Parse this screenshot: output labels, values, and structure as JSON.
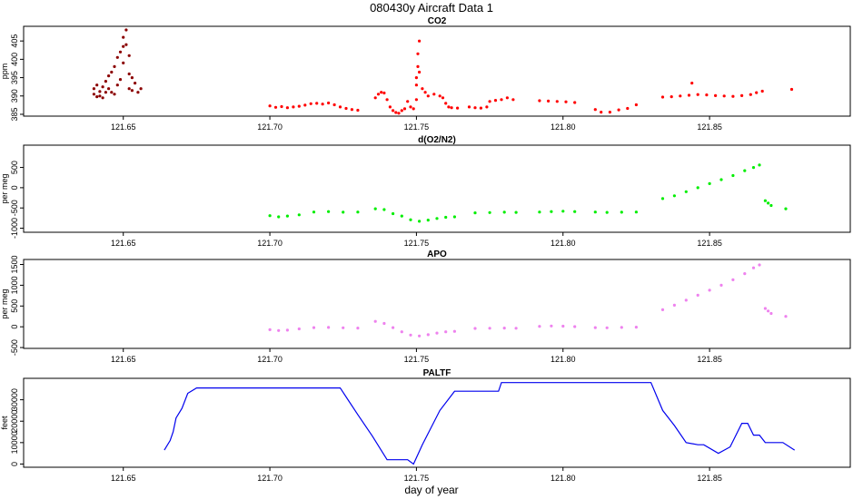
{
  "figure": {
    "title": "080430y   Aircraft Data 1",
    "xlabel": "day of year"
  },
  "chart_data": [
    {
      "type": "scatter",
      "title": "CO2",
      "ylabel": "ppm",
      "xlim": [
        121.616,
        121.898
      ],
      "ylim": [
        384.5,
        409
      ],
      "xticks": [
        121.65,
        121.7,
        121.75,
        121.8,
        121.85
      ],
      "xtick_labels": [
        "121.65",
        "121.70",
        "121.75",
        "121.80",
        "121.85"
      ],
      "yticks": [
        385,
        390,
        395,
        400,
        405
      ],
      "ytick_labels": [
        "385",
        "390",
        "395",
        "400",
        "405"
      ],
      "series": [
        {
          "color": "#8b0000",
          "points": [
            [
              121.64,
              390.5
            ],
            [
              121.64,
              392.0
            ],
            [
              121.641,
              389.8
            ],
            [
              121.641,
              393.0
            ],
            [
              121.642,
              391.2
            ],
            [
              121.642,
              390.0
            ],
            [
              121.643,
              392.5
            ],
            [
              121.643,
              389.5
            ],
            [
              121.644,
              394.0
            ],
            [
              121.644,
              391.0
            ],
            [
              121.645,
              395.5
            ],
            [
              121.645,
              392.0
            ],
            [
              121.646,
              391.0
            ],
            [
              121.646,
              396.5
            ],
            [
              121.647,
              390.5
            ],
            [
              121.647,
              398.0
            ],
            [
              121.648,
              393.0
            ],
            [
              121.648,
              400.5
            ],
            [
              121.649,
              394.5
            ],
            [
              121.649,
              402.0
            ],
            [
              121.65,
              399.0
            ],
            [
              121.65,
              403.5
            ],
            [
              121.65,
              406.0
            ],
            [
              121.651,
              408.0
            ],
            [
              121.651,
              404.0
            ],
            [
              121.652,
              396.0
            ],
            [
              121.652,
              401.0
            ],
            [
              121.652,
              392.0
            ],
            [
              121.653,
              395.0
            ],
            [
              121.653,
              391.5
            ],
            [
              121.654,
              393.5
            ],
            [
              121.655,
              391.0
            ],
            [
              121.656,
              392.0
            ]
          ]
        },
        {
          "color": "#ff0000",
          "points": [
            [
              121.7,
              387.3
            ],
            [
              121.702,
              386.9
            ],
            [
              121.704,
              387.1
            ],
            [
              121.706,
              386.8
            ],
            [
              121.708,
              387.0
            ],
            [
              121.71,
              387.2
            ],
            [
              121.712,
              387.5
            ],
            [
              121.714,
              387.9
            ],
            [
              121.716,
              388.0
            ],
            [
              121.718,
              387.8
            ],
            [
              121.72,
              388.1
            ],
            [
              121.722,
              387.6
            ],
            [
              121.724,
              387.0
            ],
            [
              121.726,
              386.6
            ],
            [
              121.728,
              386.3
            ],
            [
              121.73,
              386.1
            ],
            [
              121.736,
              389.5
            ],
            [
              121.737,
              390.5
            ],
            [
              121.738,
              391.0
            ],
            [
              121.739,
              390.8
            ],
            [
              121.74,
              389.0
            ],
            [
              121.741,
              387.0
            ],
            [
              121.742,
              386.0
            ],
            [
              121.743,
              385.5
            ],
            [
              121.744,
              385.3
            ],
            [
              121.745,
              386.0
            ],
            [
              121.746,
              386.5
            ],
            [
              121.747,
              388.5
            ],
            [
              121.748,
              387.0
            ],
            [
              121.749,
              386.5
            ],
            [
              121.75,
              389.0
            ],
            [
              121.75,
              393.0
            ],
            [
              121.75,
              395.0
            ],
            [
              121.7505,
              398.0
            ],
            [
              121.7505,
              401.5
            ],
            [
              121.751,
              405.0
            ],
            [
              121.751,
              396.5
            ],
            [
              121.752,
              392.0
            ],
            [
              121.753,
              391.0
            ],
            [
              121.754,
              390.0
            ],
            [
              121.756,
              390.5
            ],
            [
              121.758,
              390.0
            ],
            [
              121.759,
              389.5
            ],
            [
              121.76,
              388.0
            ],
            [
              121.761,
              387.0
            ],
            [
              121.762,
              386.8
            ],
            [
              121.764,
              386.7
            ],
            [
              121.768,
              387.0
            ],
            [
              121.77,
              386.8
            ],
            [
              121.772,
              386.7
            ],
            [
              121.774,
              387.0
            ],
            [
              121.775,
              388.5
            ],
            [
              121.777,
              388.8
            ],
            [
              121.779,
              389.0
            ],
            [
              121.781,
              389.5
            ],
            [
              121.783,
              389.0
            ],
            [
              121.792,
              388.7
            ],
            [
              121.795,
              388.6
            ],
            [
              121.798,
              388.5
            ],
            [
              121.801,
              388.4
            ],
            [
              121.804,
              388.2
            ],
            [
              121.811,
              386.3
            ],
            [
              121.813,
              385.6
            ],
            [
              121.816,
              385.6
            ],
            [
              121.819,
              386.2
            ],
            [
              121.822,
              386.6
            ],
            [
              121.825,
              387.6
            ],
            [
              121.834,
              389.7
            ],
            [
              121.837,
              389.8
            ],
            [
              121.84,
              390.0
            ],
            [
              121.843,
              390.2
            ],
            [
              121.846,
              390.4
            ],
            [
              121.849,
              390.3
            ],
            [
              121.852,
              390.1
            ],
            [
              121.855,
              390.0
            ],
            [
              121.858,
              389.9
            ],
            [
              121.861,
              390.1
            ],
            [
              121.864,
              390.4
            ],
            [
              121.866,
              390.9
            ],
            [
              121.868,
              391.3
            ],
            [
              121.844,
              393.5
            ],
            [
              121.878,
              391.8
            ]
          ]
        }
      ]
    },
    {
      "type": "scatter",
      "title": "d(O2/N2)",
      "ylabel": "per meg",
      "xlim": [
        121.616,
        121.898
      ],
      "ylim": [
        -1100,
        1050
      ],
      "xticks": [
        121.65,
        121.7,
        121.75,
        121.8,
        121.85
      ],
      "xtick_labels": [
        "121.65",
        "121.70",
        "121.75",
        "121.80",
        "121.85"
      ],
      "yticks": [
        -1000,
        -500,
        0,
        500
      ],
      "ytick_labels": [
        "-1000",
        "-500",
        "0",
        "500"
      ],
      "series": [
        {
          "color": "#00ee00",
          "points": [
            [
              121.7,
              -690
            ],
            [
              121.703,
              -720
            ],
            [
              121.706,
              -700
            ],
            [
              121.71,
              -670
            ],
            [
              121.715,
              -600
            ],
            [
              121.72,
              -590
            ],
            [
              121.725,
              -605
            ],
            [
              121.73,
              -600
            ],
            [
              121.736,
              -520
            ],
            [
              121.739,
              -540
            ],
            [
              121.742,
              -640
            ],
            [
              121.745,
              -700
            ],
            [
              121.748,
              -790
            ],
            [
              121.751,
              -830
            ],
            [
              121.754,
              -800
            ],
            [
              121.757,
              -760
            ],
            [
              121.76,
              -730
            ],
            [
              121.763,
              -720
            ],
            [
              121.77,
              -620
            ],
            [
              121.775,
              -615
            ],
            [
              121.78,
              -605
            ],
            [
              121.784,
              -610
            ],
            [
              121.792,
              -600
            ],
            [
              121.796,
              -590
            ],
            [
              121.8,
              -580
            ],
            [
              121.804,
              -590
            ],
            [
              121.811,
              -600
            ],
            [
              121.815,
              -610
            ],
            [
              121.82,
              -605
            ],
            [
              121.825,
              -600
            ],
            [
              121.834,
              -270
            ],
            [
              121.838,
              -200
            ],
            [
              121.842,
              -100
            ],
            [
              121.846,
              0
            ],
            [
              121.85,
              100
            ],
            [
              121.854,
              200
            ],
            [
              121.858,
              300
            ],
            [
              121.862,
              420
            ],
            [
              121.865,
              500
            ],
            [
              121.867,
              560
            ],
            [
              121.869,
              -320
            ],
            [
              121.87,
              -380
            ],
            [
              121.871,
              -440
            ],
            [
              121.876,
              -520
            ]
          ]
        }
      ]
    },
    {
      "type": "scatter",
      "title": "APO",
      "ylabel": "per meg",
      "xlim": [
        121.616,
        121.898
      ],
      "ylim": [
        -520,
        1620
      ],
      "xticks": [
        121.65,
        121.7,
        121.75,
        121.8,
        121.85
      ],
      "xtick_labels": [
        "121.65",
        "121.70",
        "121.75",
        "121.80",
        "121.85"
      ],
      "yticks": [
        -500,
        0,
        500,
        1000,
        1500
      ],
      "ytick_labels": [
        "-500",
        "0",
        "500",
        "1000",
        "1500"
      ],
      "series": [
        {
          "color": "#ee82ee",
          "points": [
            [
              121.7,
              -70
            ],
            [
              121.703,
              -90
            ],
            [
              121.706,
              -80
            ],
            [
              121.71,
              -50
            ],
            [
              121.715,
              -20
            ],
            [
              121.72,
              -15
            ],
            [
              121.725,
              -25
            ],
            [
              121.73,
              -30
            ],
            [
              121.736,
              130
            ],
            [
              121.739,
              80
            ],
            [
              121.742,
              -20
            ],
            [
              121.745,
              -120
            ],
            [
              121.748,
              -200
            ],
            [
              121.751,
              -220
            ],
            [
              121.754,
              -190
            ],
            [
              121.757,
              -150
            ],
            [
              121.76,
              -120
            ],
            [
              121.763,
              -110
            ],
            [
              121.77,
              -40
            ],
            [
              121.775,
              -35
            ],
            [
              121.78,
              -30
            ],
            [
              121.784,
              -35
            ],
            [
              121.792,
              10
            ],
            [
              121.796,
              20
            ],
            [
              121.8,
              15
            ],
            [
              121.804,
              5
            ],
            [
              121.811,
              -20
            ],
            [
              121.815,
              -25
            ],
            [
              121.82,
              -15
            ],
            [
              121.825,
              -10
            ],
            [
              121.834,
              410
            ],
            [
              121.838,
              520
            ],
            [
              121.842,
              640
            ],
            [
              121.846,
              760
            ],
            [
              121.85,
              880
            ],
            [
              121.854,
              1000
            ],
            [
              121.858,
              1130
            ],
            [
              121.862,
              1280
            ],
            [
              121.865,
              1420
            ],
            [
              121.867,
              1490
            ],
            [
              121.869,
              440
            ],
            [
              121.87,
              380
            ],
            [
              121.871,
              320
            ],
            [
              121.876,
              250
            ]
          ]
        }
      ]
    },
    {
      "type": "line",
      "title": "PALTF",
      "ylabel": "feet",
      "xlim": [
        121.616,
        121.898
      ],
      "ylim": [
        -1500,
        40000
      ],
      "xticks": [
        121.65,
        121.7,
        121.75,
        121.8,
        121.85
      ],
      "xtick_labels": [
        "121.65",
        "121.70",
        "121.75",
        "121.80",
        "121.85"
      ],
      "yticks": [
        0,
        10000,
        20000,
        30000
      ],
      "ytick_labels": [
        "0",
        "10000",
        "20000",
        "30000"
      ],
      "series": [
        {
          "color": "#0000ee",
          "x": [
            121.664,
            121.666,
            121.667,
            121.668,
            121.67,
            121.672,
            121.675,
            121.724,
            121.73,
            121.735,
            121.74,
            121.744,
            121.747,
            121.749,
            121.752,
            121.758,
            121.763,
            121.778,
            121.779,
            121.83,
            121.834,
            121.838,
            121.842,
            121.846,
            121.848,
            121.853,
            121.857,
            121.861,
            121.863,
            121.865,
            121.867,
            121.869,
            121.875,
            121.879
          ],
          "values": [
            6500,
            11000,
            15000,
            21500,
            26000,
            33000,
            35500,
            35500,
            23000,
            13000,
            2000,
            2000,
            2000,
            0,
            9000,
            25000,
            34000,
            34000,
            38000,
            38000,
            25000,
            18000,
            10000,
            9000,
            9000,
            5000,
            8000,
            19000,
            19000,
            13500,
            13500,
            10000,
            10000,
            6500
          ]
        }
      ]
    }
  ]
}
